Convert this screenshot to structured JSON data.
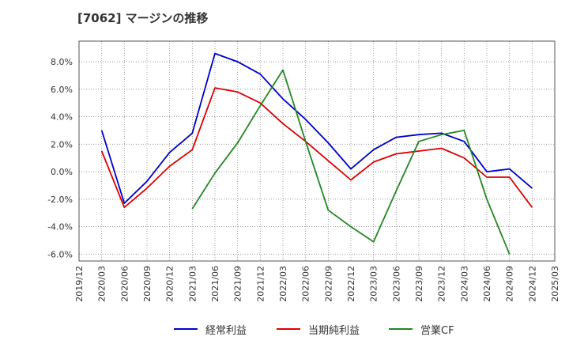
{
  "title": "[7062]  マージンの推移",
  "chart_data": {
    "type": "line",
    "title": "[7062]  マージンの推移",
    "xlabel": "",
    "ylabel": "",
    "x": [
      "2019/12",
      "2020/03",
      "2020/06",
      "2020/09",
      "2020/12",
      "2021/03",
      "2021/06",
      "2021/09",
      "2021/12",
      "2022/03",
      "2022/06",
      "2022/09",
      "2022/12",
      "2023/03",
      "2023/06",
      "2023/09",
      "2023/12",
      "2024/03",
      "2024/06",
      "2024/09",
      "2024/12",
      "2025/03"
    ],
    "ylim": [
      -6.5,
      9.5
    ],
    "yticks": [
      -6,
      -4,
      -2,
      0,
      2,
      4,
      6,
      8
    ],
    "ytick_labels": [
      "-6.0%",
      "-4.0%",
      "-2.0%",
      "0.0%",
      "2.0%",
      "4.0%",
      "6.0%",
      "8.0%"
    ],
    "grid": true,
    "legend_position": "bottom",
    "series": [
      {
        "name": "経常利益",
        "color": "#0000cc",
        "values": [
          null,
          3.0,
          -2.3,
          -0.7,
          1.4,
          2.8,
          8.6,
          8.0,
          7.1,
          5.3,
          3.8,
          2.1,
          0.2,
          1.6,
          2.5,
          2.7,
          2.8,
          2.2,
          0.0,
          0.2,
          -1.2,
          null
        ]
      },
      {
        "name": "当期純利益",
        "color": "#dd0000",
        "values": [
          null,
          1.5,
          -2.6,
          -1.2,
          0.4,
          1.6,
          6.1,
          5.8,
          5.0,
          3.5,
          2.2,
          0.8,
          -0.6,
          0.7,
          1.3,
          1.5,
          1.7,
          1.0,
          -0.4,
          -0.4,
          -2.6,
          null
        ]
      },
      {
        "name": "営業CF",
        "color": "#228822",
        "values": [
          null,
          null,
          null,
          null,
          null,
          -2.7,
          -0.1,
          2.1,
          4.8,
          7.4,
          2.2,
          -2.8,
          -4.0,
          -5.1,
          -1.4,
          2.2,
          2.7,
          3.0,
          -2.0,
          -6.0,
          null,
          null
        ]
      }
    ]
  }
}
